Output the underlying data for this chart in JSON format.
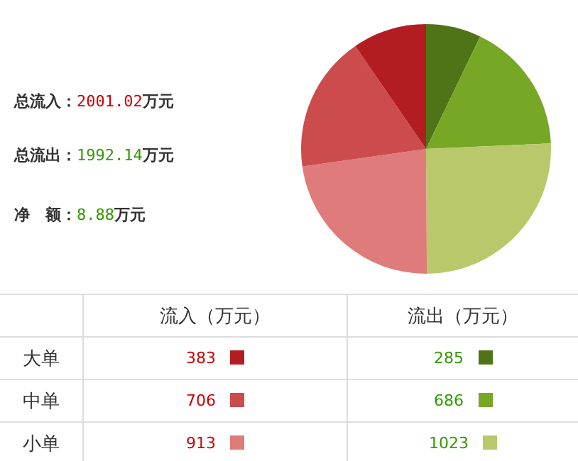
{
  "chart_data": {
    "type": "pie",
    "categories": [
      "383",
      "706",
      "913",
      "285",
      "686",
      "1023"
    ],
    "values": [
      383,
      706,
      913,
      285,
      686,
      1023
    ],
    "colors": [
      "#b21d22",
      "#cc4b4d",
      "#e07b7b",
      "#4f7417",
      "#76a826",
      "#b9c86a"
    ],
    "legend": "bottom",
    "annotations": [
      "总流入：2001.02万元",
      "总流出：1992.14万元",
      "净　额：8.88万元",
      "流入（万元）",
      "流出（万元）",
      "大单",
      "中单",
      "小单"
    ]
  }
}
